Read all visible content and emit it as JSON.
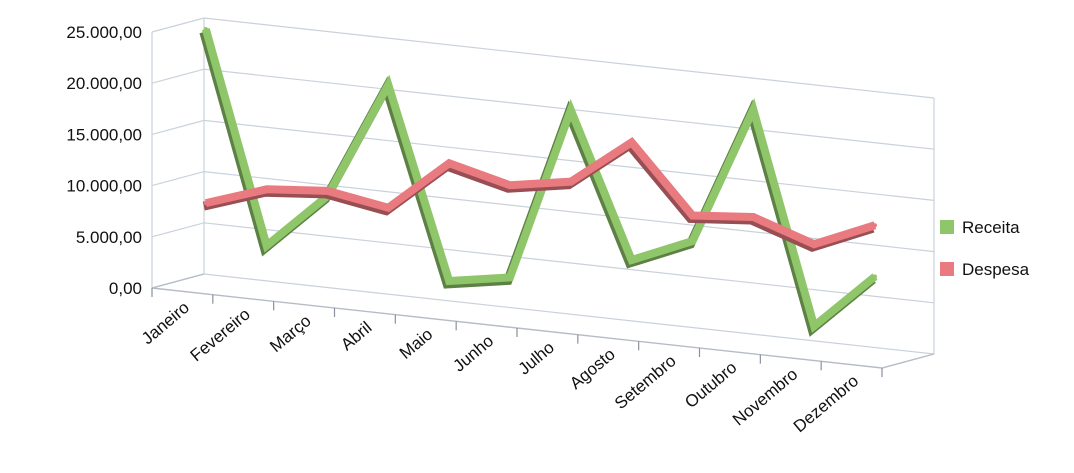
{
  "chart_data": {
    "type": "line",
    "style": "3d",
    "categories": [
      "Janeiro",
      "Fevereiro",
      "Março",
      "Abril",
      "Maio",
      "Junho",
      "Julho",
      "Agosto",
      "Setembro",
      "Outubro",
      "Novembro",
      "Dezembro"
    ],
    "series": [
      {
        "name": "Receita",
        "color": "#8fc66a",
        "values": [
          25000,
          4500,
          10000,
          21500,
          3000,
          4000,
          21000,
          7000,
          9500,
          23000,
          2500,
          8000
        ]
      },
      {
        "name": "Despesa",
        "color": "#e97a7f",
        "values": [
          8000,
          10000,
          10500,
          9500,
          14500,
          13000,
          14000,
          18500,
          12000,
          12500,
          10500,
          13000
        ]
      }
    ],
    "y_ticks": [
      "0,00",
      "5.000,00",
      "10.000,00",
      "15.000,00",
      "20.000,00",
      "25.000,00"
    ],
    "ylim": [
      0,
      25000
    ],
    "grid": true,
    "legend_position": "right"
  }
}
